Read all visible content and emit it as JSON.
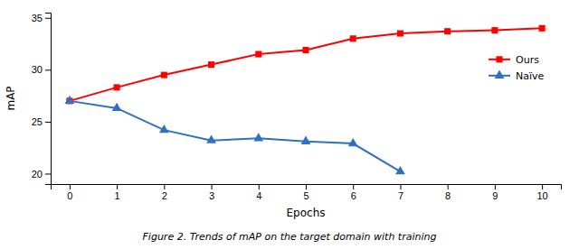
{
  "chart_data": {
    "type": "line",
    "caption": "Figure 2. Trends of mAP on the target domain with training",
    "x_label": "Epochs",
    "y_label": "mAP",
    "x": [
      0,
      1,
      2,
      3,
      4,
      5,
      6,
      7,
      8,
      9,
      10
    ],
    "series": [
      {
        "name": "Ours",
        "color": "#ff0000",
        "marker": "square",
        "values": [
          27.0,
          28.3,
          29.5,
          30.5,
          31.5,
          31.9,
          33.0,
          33.5,
          33.7,
          33.8,
          34.0
        ]
      },
      {
        "name": "Naïve",
        "color": "#3070c0",
        "marker": "triangle",
        "values": [
          27.0,
          26.3,
          24.2,
          23.2,
          23.4,
          23.1,
          22.9,
          20.2,
          null,
          null,
          null
        ]
      }
    ],
    "xlim": [
      -0.4,
      10.4
    ],
    "xticks": [
      0,
      1,
      2,
      3,
      4,
      5,
      6,
      7,
      8,
      9,
      10
    ],
    "ylim": [
      19.0,
      35.5
    ],
    "yticks": [
      20,
      25,
      30,
      35
    ],
    "legend": "right"
  }
}
